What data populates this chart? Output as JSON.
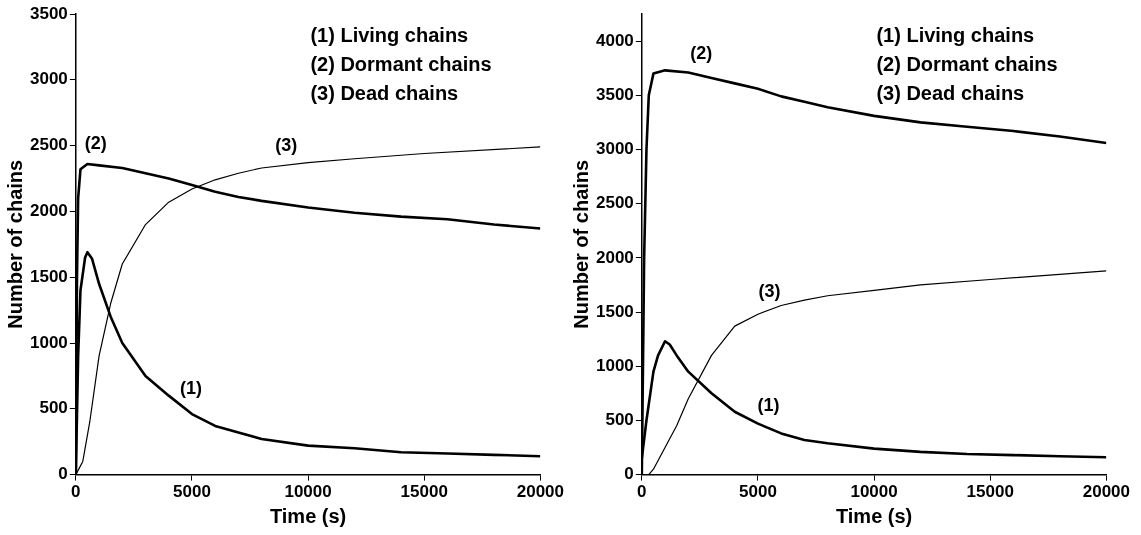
{
  "chart_data": [
    {
      "type": "line",
      "xlabel": "Time (s)",
      "ylabel": "Number of chains",
      "xlim": [
        0,
        20000
      ],
      "xticks": [
        0,
        5000,
        10000,
        15000,
        20000
      ],
      "ylim": [
        0,
        3500
      ],
      "yticks": [
        0,
        500,
        1000,
        1500,
        2000,
        2500,
        3000,
        3500
      ],
      "grid": false,
      "legend": false,
      "marker": "none",
      "line_style": "solid",
      "annotations": [
        "(1) Living chains",
        "(2) Dormant chains",
        "(3) Dead chains"
      ],
      "series": [
        {
          "name": "(1)",
          "color": "#000000",
          "x": [
            0,
            100,
            200,
            400,
            500,
            700,
            1000,
            1500,
            2000,
            3000,
            4000,
            5000,
            6000,
            7000,
            8000,
            10000,
            12000,
            14000,
            16000,
            18000,
            20000
          ],
          "values": [
            0,
            900,
            1400,
            1650,
            1690,
            1640,
            1450,
            1200,
            1000,
            750,
            600,
            460,
            370,
            320,
            270,
            220,
            200,
            170,
            160,
            150,
            140
          ]
        },
        {
          "name": "(2)",
          "color": "#000000",
          "x": [
            0,
            50,
            100,
            200,
            500,
            1000,
            2000,
            3000,
            4000,
            5000,
            6000,
            7000,
            8000,
            10000,
            12000,
            14000,
            16000,
            18000,
            20000
          ],
          "values": [
            0,
            1500,
            2100,
            2320,
            2360,
            2350,
            2330,
            2290,
            2250,
            2200,
            2150,
            2110,
            2080,
            2030,
            1990,
            1960,
            1940,
            1900,
            1870
          ]
        },
        {
          "name": "(3)",
          "color": "#000000",
          "x": [
            0,
            300,
            600,
            1000,
            1500,
            2000,
            3000,
            4000,
            5000,
            6000,
            7000,
            8000,
            10000,
            12000,
            15000,
            20000
          ],
          "values": [
            0,
            100,
            400,
            900,
            1300,
            1600,
            1900,
            2070,
            2170,
            2240,
            2290,
            2330,
            2370,
            2400,
            2440,
            2490
          ]
        }
      ]
    },
    {
      "type": "line",
      "xlabel": "Time (s)",
      "ylabel": "Number of chains",
      "xlim": [
        0,
        20000
      ],
      "xticks": [
        0,
        5000,
        10000,
        15000,
        20000
      ],
      "ylim": [
        0,
        4250
      ],
      "yticks": [
        0,
        500,
        1000,
        1500,
        2000,
        2500,
        3000,
        3500,
        4000
      ],
      "grid": false,
      "legend": false,
      "marker": "none",
      "line_style": "solid",
      "annotations": [
        "(1) Living chains",
        "(2) Dormant chains",
        "(3) Dead chains"
      ],
      "series": [
        {
          "name": "(1)",
          "color": "#000000",
          "x": [
            0,
            200,
            500,
            700,
            1000,
            1200,
            1500,
            2000,
            3000,
            4000,
            5000,
            6000,
            7000,
            8000,
            10000,
            12000,
            14000,
            16000,
            18000,
            20000
          ],
          "values": [
            150,
            500,
            950,
            1100,
            1230,
            1200,
            1100,
            950,
            750,
            580,
            470,
            380,
            320,
            290,
            240,
            210,
            190,
            180,
            170,
            160
          ]
        },
        {
          "name": "(2)",
          "color": "#000000",
          "x": [
            0,
            100,
            200,
            300,
            500,
            1000,
            2000,
            3000,
            4000,
            5000,
            6000,
            7000,
            8000,
            10000,
            12000,
            14000,
            16000,
            18000,
            20000
          ],
          "values": [
            0,
            2000,
            3000,
            3500,
            3700,
            3730,
            3710,
            3660,
            3610,
            3560,
            3490,
            3440,
            3390,
            3310,
            3250,
            3210,
            3170,
            3120,
            3060
          ]
        },
        {
          "name": "(3)",
          "color": "#000000",
          "x": [
            0,
            300,
            500,
            1000,
            1500,
            2000,
            3000,
            4000,
            5000,
            6000,
            7000,
            8000,
            10000,
            12000,
            15000,
            20000
          ],
          "values": [
            0,
            0,
            50,
            250,
            450,
            700,
            1100,
            1370,
            1480,
            1560,
            1610,
            1650,
            1700,
            1750,
            1800,
            1880
          ]
        }
      ]
    }
  ]
}
